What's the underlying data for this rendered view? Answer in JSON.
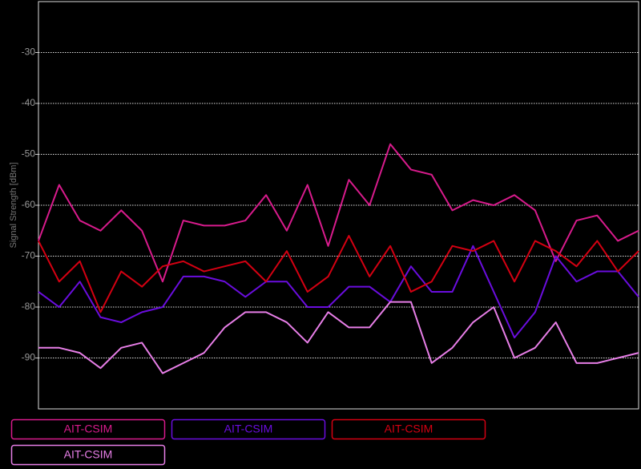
{
  "chart_data": {
    "type": "line",
    "y_label": "Signal Strength [dBm]",
    "ylim": [
      -100,
      -20
    ],
    "yticks": [
      -90,
      -80,
      -70,
      -60,
      -50,
      -40,
      -30
    ],
    "grid": true,
    "categories": [
      null,
      null,
      null,
      null,
      null,
      null,
      null,
      null,
      null,
      null,
      null,
      null,
      null,
      null,
      null,
      null,
      null,
      null,
      null,
      null,
      null,
      null,
      null,
      null,
      null,
      null,
      null,
      null,
      null,
      null
    ],
    "series": [
      {
        "name": "AIT-CSIM",
        "color": "#d81b8c",
        "values": [
          -67,
          -56,
          -63,
          -65,
          -61,
          -65,
          -75,
          -63,
          -64,
          -64,
          -63,
          -58,
          -65,
          -56,
          -68,
          -55,
          -60,
          -48,
          -53,
          -54,
          -61,
          -59,
          -60,
          -58,
          -61,
          -71,
          -63,
          -62,
          -67,
          -65
        ]
      },
      {
        "name": "AIT-CSIM",
        "color": "#6a0dde",
        "values": [
          -77,
          -80,
          -75,
          -82,
          -83,
          -81,
          -80,
          -74,
          -74,
          -75,
          -78,
          -75,
          -75,
          -80,
          -80,
          -76,
          -76,
          -79,
          -72,
          -77,
          -77,
          -68,
          -77,
          -86,
          -81,
          -70,
          -75,
          -73,
          -73,
          -78
        ]
      },
      {
        "name": "AIT-CSIM",
        "color": "#d40012",
        "values": [
          -67,
          -75,
          -71,
          -81,
          -73,
          -76,
          -72,
          -71,
          -73,
          -72,
          -71,
          -75,
          -69,
          -77,
          -74,
          -66,
          -74,
          -68,
          -77,
          -75,
          -68,
          -69,
          -67,
          -75,
          -67,
          -69,
          -72,
          -67,
          -73,
          -69
        ]
      },
      {
        "name": "AIT-CSIM",
        "color": "#e77ee7",
        "values": [
          -88,
          -88,
          -89,
          -92,
          -88,
          -87,
          -93,
          -91,
          -89,
          -84,
          -81,
          -81,
          -83,
          -87,
          -81,
          -84,
          -84,
          -79,
          -79,
          -91,
          -88,
          -83,
          -80,
          -90,
          -88,
          -83,
          -91,
          -91,
          -90,
          -89
        ]
      }
    ]
  }
}
